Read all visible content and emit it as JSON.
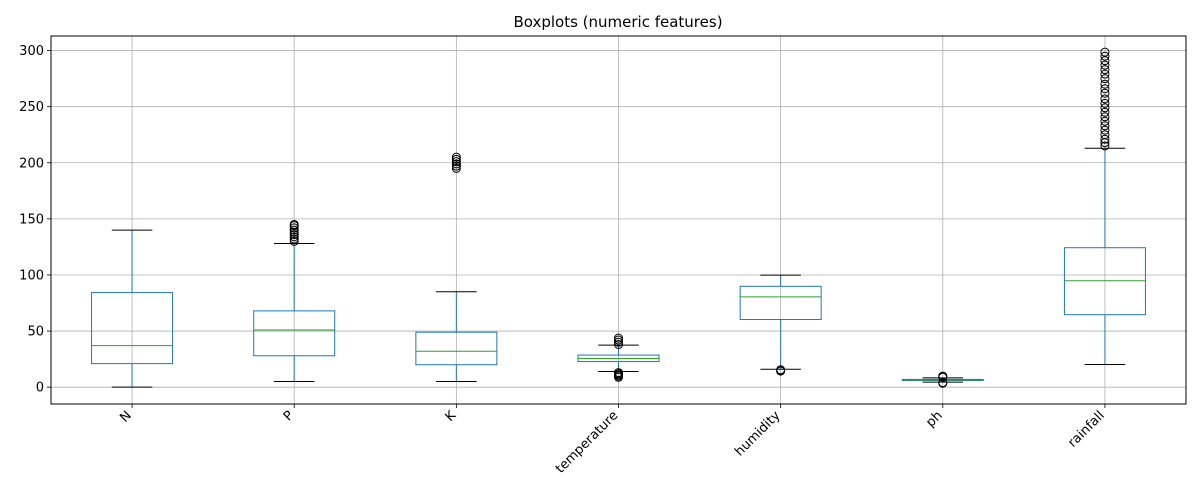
{
  "chart_data": {
    "type": "boxplot",
    "title": "Boxplots (numeric features)",
    "xlabel": "",
    "ylabel": "",
    "ylim": [
      -15,
      313
    ],
    "yticks": [
      0,
      50,
      100,
      150,
      200,
      250,
      300
    ],
    "grid": true,
    "legend": "none",
    "colors": {
      "box": "#1f77b4",
      "median": "#2ca02c",
      "whisker": "#1f77b4",
      "cap": "#000000",
      "flier": "#000000",
      "grid": "#b0b0b0"
    },
    "categories": [
      "N",
      "P",
      "K",
      "temperature",
      "humidity",
      "ph",
      "rainfall"
    ],
    "boxes": [
      {
        "whislo": 0,
        "q1": 21,
        "med": 37,
        "q3": 84.3,
        "whishi": 140,
        "fliers": []
      },
      {
        "whislo": 5,
        "q1": 28,
        "med": 51,
        "q3": 68,
        "whishi": 128,
        "fliers": [
          130,
          132,
          134,
          136,
          138,
          140,
          142,
          144,
          145
        ]
      },
      {
        "whislo": 5,
        "q1": 20,
        "med": 32,
        "q3": 49,
        "whishi": 85,
        "fliers": [
          195,
          197,
          199,
          201,
          203,
          205
        ]
      },
      {
        "whislo": 14,
        "q1": 22.8,
        "med": 25.6,
        "q3": 28.6,
        "whishi": 37.5,
        "fliers": [
          8.8,
          10,
          11,
          12,
          13,
          38,
          40,
          42,
          43.7
        ]
      },
      {
        "whislo": 16,
        "q1": 60.3,
        "med": 80.5,
        "q3": 89.9,
        "whishi": 99.9,
        "fliers": [
          14.3,
          15,
          15.5
        ]
      },
      {
        "whislo": 4.5,
        "q1": 5.97,
        "med": 6.43,
        "q3": 6.92,
        "whishi": 8.3,
        "fliers": [
          3.5,
          4,
          8.8,
          9.4,
          9.9
        ]
      },
      {
        "whislo": 20.2,
        "q1": 64.6,
        "med": 94.9,
        "q3": 124.3,
        "whishi": 213,
        "fliers": [
          215,
          218,
          221,
          225,
          229,
          233,
          237,
          241,
          245,
          249,
          253,
          257,
          262,
          266,
          270,
          275,
          279,
          283,
          287,
          291,
          295,
          298.6
        ]
      }
    ]
  }
}
